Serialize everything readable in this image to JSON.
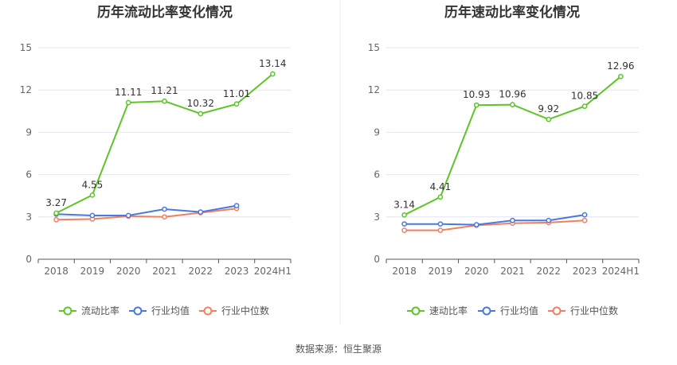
{
  "source_text": "数据来源：恒生聚源",
  "colors": {
    "primary": "#5cc626",
    "industry_avg": "#4a78e0",
    "industry_median": "#f08060",
    "grid": "#e4e4ee",
    "axis": "#555555"
  },
  "chart_data": [
    {
      "type": "line",
      "title": "历年流动比率变化情况",
      "categories": [
        "2018",
        "2019",
        "2020",
        "2021",
        "2022",
        "2023",
        "2024H1"
      ],
      "ylim": [
        0,
        15
      ],
      "yticks": [
        0,
        3,
        6,
        9,
        12,
        15
      ],
      "grid": true,
      "legend_position": "bottom",
      "series": [
        {
          "name": "流动比率",
          "values": [
            3.27,
            4.55,
            11.11,
            11.21,
            10.32,
            11.01,
            13.14
          ],
          "labels": [
            "3.27",
            "4.55",
            "11.11",
            "11.21",
            "10.32",
            "11.01",
            "13.14"
          ]
        },
        {
          "name": "行业均值",
          "values": [
            3.2,
            3.1,
            3.1,
            3.55,
            3.35,
            3.8,
            null
          ]
        },
        {
          "name": "行业中位数",
          "values": [
            2.8,
            2.85,
            3.05,
            3.0,
            3.3,
            3.6,
            null
          ]
        }
      ]
    },
    {
      "type": "line",
      "title": "历年速动比率变化情况",
      "categories": [
        "2018",
        "2019",
        "2020",
        "2021",
        "2022",
        "2023",
        "2024H1"
      ],
      "ylim": [
        0,
        15
      ],
      "yticks": [
        0,
        3,
        6,
        9,
        12,
        15
      ],
      "grid": true,
      "legend_position": "bottom",
      "series": [
        {
          "name": "速动比率",
          "values": [
            3.14,
            4.41,
            10.93,
            10.96,
            9.92,
            10.85,
            12.96
          ],
          "labels": [
            "3.14",
            "4.41",
            "10.93",
            "10.96",
            "9.92",
            "10.85",
            "12.96"
          ]
        },
        {
          "name": "行业均值",
          "values": [
            2.5,
            2.5,
            2.45,
            2.75,
            2.75,
            3.15,
            null
          ]
        },
        {
          "name": "行业中位数",
          "values": [
            2.05,
            2.05,
            2.4,
            2.55,
            2.6,
            2.75,
            null
          ]
        }
      ]
    }
  ]
}
